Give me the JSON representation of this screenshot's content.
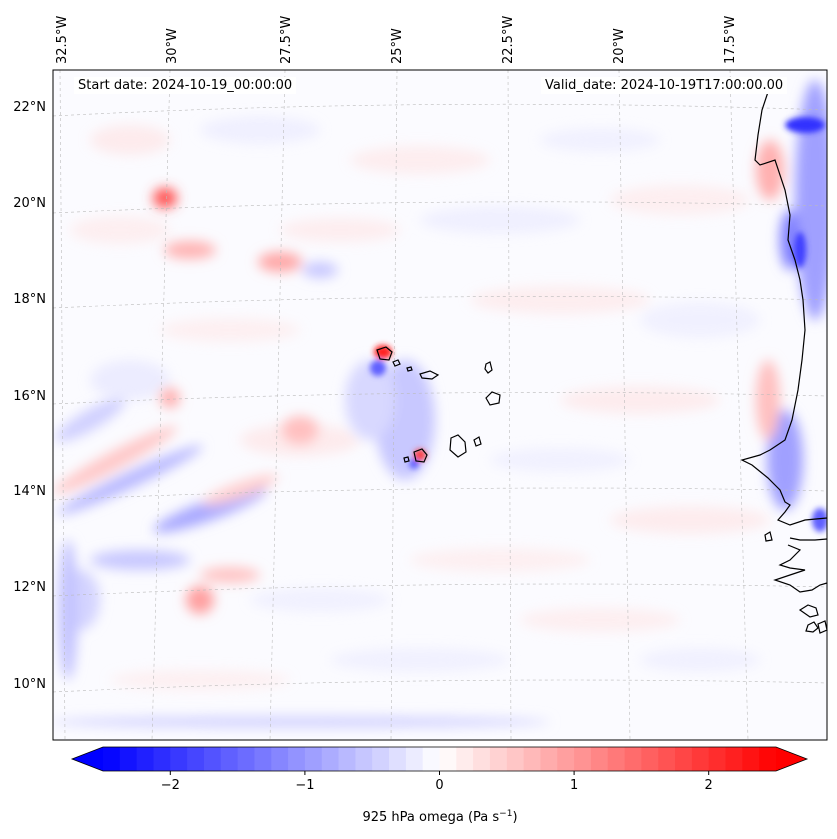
{
  "annotations": {
    "start_date": "Start date: 2024-10-19_00:00:00",
    "valid_date": "Valid_date: 2024-10-19T17:00:00.00"
  },
  "map": {
    "variable": "925 hPa omega",
    "units": "Pa s^-1",
    "lat_range": [
      8.8,
      22.8
    ],
    "lon_range": [
      -32.6,
      -15.8
    ],
    "lon_ticks": [
      "32.5°W",
      "30°W",
      "27.5°W",
      "25°W",
      "22.5°W",
      "20°W",
      "17.5°W"
    ],
    "lat_ticks": [
      "22°N",
      "20°N",
      "18°N",
      "16°N",
      "14°N",
      "12°N",
      "10°N"
    ],
    "gridlines": true,
    "features": [
      "Cape Verde islands",
      "West African coastline (Mauritania, Senegal, Gambia, Guinea-Bissau)"
    ]
  },
  "colorbar": {
    "label": "925 hPa omega (Pa s",
    "label_sup": "−1",
    "label_end": ")",
    "ticks": [
      "−2",
      "−1",
      "0",
      "1",
      "2"
    ],
    "tick_values": [
      -2,
      -1,
      0,
      1,
      2
    ],
    "range": [
      -2.5,
      2.5
    ],
    "colormap": "bwr",
    "extend": "both",
    "low_color": "#0000ff",
    "mid_color": "#ffffff",
    "high_color": "#ff0000"
  }
}
